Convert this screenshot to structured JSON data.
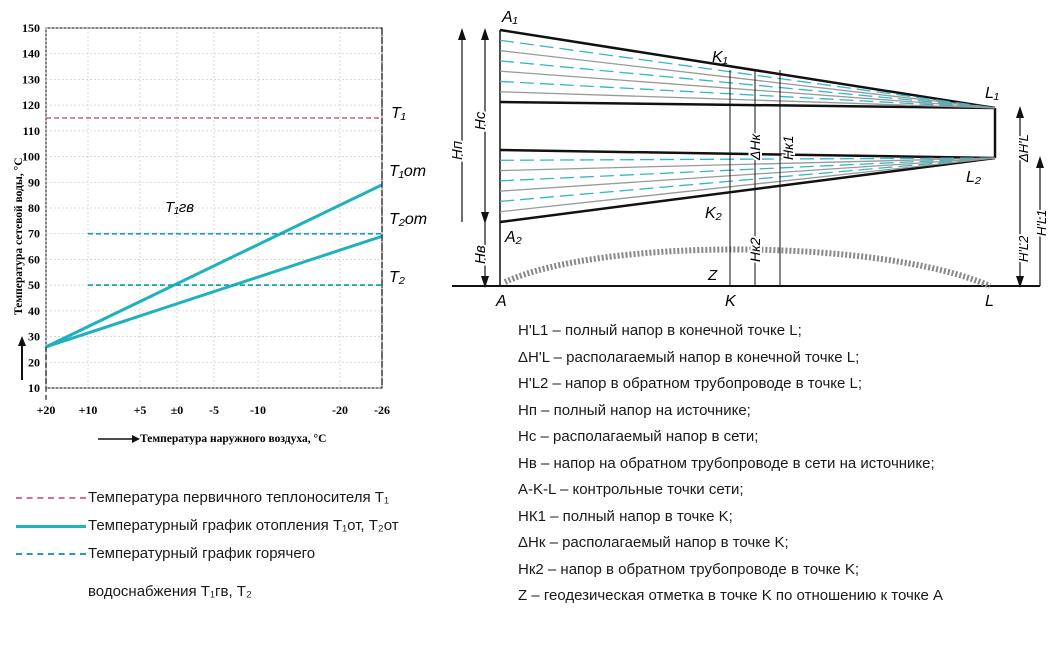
{
  "left_chart": {
    "y_axis_label": "Температура сетевой воды, °С",
    "x_axis_label": "Температура наружного воздуха, °С",
    "y_ticks": [
      "150",
      "140",
      "130",
      "120",
      "110",
      "100",
      "90",
      "80",
      "70",
      "60",
      "50",
      "40",
      "30",
      "20",
      "10"
    ],
    "x_ticks": [
      "+20",
      "+10",
      "+5",
      "±0",
      "-5",
      "-10",
      "-20",
      "-26"
    ],
    "curve_labels": {
      "T1": "T₁",
      "T1ot": "T₁от",
      "T2ot": "T₂от",
      "T2": "T₂",
      "T1gv": "T₁гв"
    },
    "chart_data": {
      "type": "line",
      "title": "",
      "xlabel": "Температура наружного воздуха, °С",
      "ylabel": "Температура сетевой воды, °С",
      "ylim": [
        10,
        150
      ],
      "x_ticks": [
        "+20",
        "+10",
        "+5",
        "±0",
        "-5",
        "-10",
        "-20",
        "-26"
      ],
      "series": [
        {
          "name": "T₁",
          "x": [
            "+20",
            "-26"
          ],
          "y": [
            115,
            115
          ]
        },
        {
          "name": "T₁от",
          "x": [
            "+20",
            "-26"
          ],
          "y": [
            26,
            89
          ]
        },
        {
          "name": "T₂от",
          "x": [
            "+20",
            "-26"
          ],
          "y": [
            26,
            69
          ]
        },
        {
          "name": "T₁гв",
          "x": [
            "+10",
            "-26"
          ],
          "y": [
            70,
            70
          ]
        },
        {
          "name": "T₂",
          "x": [
            "+10",
            "-26"
          ],
          "y": [
            50,
            50
          ]
        }
      ]
    }
  },
  "legend_left": [
    {
      "text": "Температура первичного теплоносителя T₁",
      "color": "#e0699a"
    },
    {
      "text": "Температурный график отопления T₁от, T₂от",
      "color": "#1fb2bd"
    },
    {
      "text": "Температурный график горячего",
      "color": "#1f9fb0"
    },
    {
      "text": "водоснабжения T₁гв, T₂",
      "color": ""
    }
  ],
  "right_diagram": {
    "points": {
      "A1": "A₁",
      "A2": "A₂",
      "K1": "K₁",
      "K2": "K₂",
      "L1": "L₁",
      "L2": "L₂",
      "A": "A",
      "K": "K",
      "L": "L"
    },
    "dims": {
      "Hp": "Hп",
      "Hc": "Hс",
      "Hv": "Hв",
      "dHk": "ΔHк",
      "Hk1": "Hк1",
      "Hk2": "Hк2",
      "Z": "Z",
      "dHL": "ΔH'L",
      "HL1": "H'L1",
      "HL2": "H'L2"
    },
    "legend": [
      "H'L1 – полный напор в конечной точке L;",
      "ΔH'L – располагаемый напор в конечной точке L;",
      "H'L2 – напор в обратном трубопроводе в точке L;",
      "Hп – полный напор на источнике;",
      "Hс – располагаемый напор в сети;",
      "Hв – напор на обратном трубопроводе в сети на источнике;",
      "A-K-L – контрольные точки сети;",
      "HК1 – полный напор в точке K;",
      "ΔHк – располагаемый напор в точке K;",
      "Hк2 – напор в обратном трубопроводе в точке K;",
      "Z – геодезическая отметка в точке K по отношению к точке A"
    ]
  },
  "colors": {
    "pink": "#e0699a",
    "teal": "#1fb2bd",
    "teal_dash": "#1f9fb0",
    "dark": "#1a1a1a"
  }
}
